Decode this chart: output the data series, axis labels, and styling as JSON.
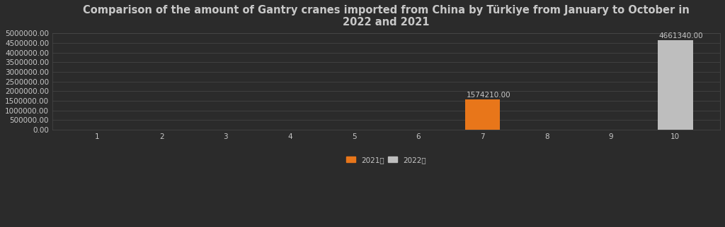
{
  "title": "Comparison of the amount of Gantry cranes imported from China by Türkiye from January to October in\n2022 and 2021",
  "months": [
    1,
    2,
    3,
    4,
    5,
    6,
    7,
    8,
    9,
    10
  ],
  "values_2021": [
    0,
    0,
    0,
    0,
    0,
    0,
    1574210.0,
    0,
    0,
    0
  ],
  "values_2022": [
    0,
    0,
    0,
    0,
    0,
    0,
    0,
    0,
    0,
    4661340.0
  ],
  "bar_color_2021": "#E8761A",
  "bar_color_2022": "#BEBEBE",
  "background_color": "#2b2b2b",
  "text_color": "#c8c8c8",
  "grid_color": "#484848",
  "label_2021": "2021年",
  "label_2022": "2022年",
  "ylim": [
    0,
    5000000
  ],
  "ytick_interval": 500000,
  "bar_width": 0.55,
  "annotation_2021_value": "1574210.00",
  "annotation_2022_value": "4661340.00",
  "title_fontsize": 10.5,
  "tick_fontsize": 7.5,
  "legend_fontsize": 7.5
}
